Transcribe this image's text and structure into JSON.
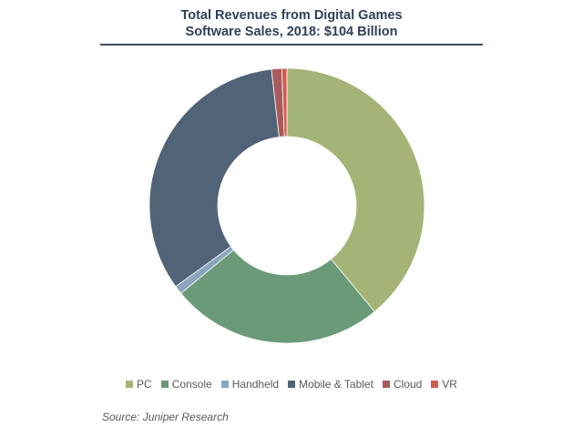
{
  "chart_data": {
    "type": "pie",
    "title": [
      "Total Revenues from Digital Games",
      "Software Sales, 2018: $104 Billion"
    ],
    "categories": [
      "PC",
      "Console",
      "Handheld",
      "Mobile & Tablet",
      "Cloud",
      "VR"
    ],
    "values": [
      39.0,
      25.0,
      1.0,
      33.2,
      1.2,
      0.6
    ],
    "unit": "percent of total (estimated)",
    "colors": [
      "#a3b476",
      "#6b9a78",
      "#8aa5bd",
      "#506377",
      "#a85a5c",
      "#d45a4e"
    ],
    "legend_position": "bottom",
    "donut": true
  },
  "source": "Source: Juniper Research"
}
